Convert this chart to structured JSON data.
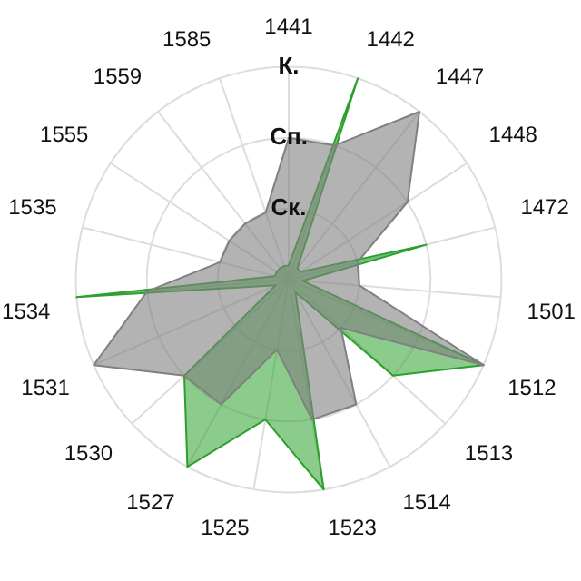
{
  "chart_data": {
    "type": "radar",
    "categories": [
      "1441",
      "1442",
      "1447",
      "1448",
      "1472",
      "1501",
      "1512",
      "1513",
      "1514",
      "1523",
      "1525",
      "1527",
      "1530",
      "1531",
      "1534",
      "1535",
      "1555",
      "1559",
      "1585"
    ],
    "series": [
      {
        "color": "#808080",
        "values": [
          2,
          2,
          3,
          2,
          1,
          1,
          3,
          1,
          2,
          2,
          1,
          2,
          2,
          3,
          2,
          1,
          1,
          1,
          1
        ]
      },
      {
        "color": "#2ca02c",
        "values": [
          0.2,
          3,
          0.2,
          0.2,
          2,
          0.2,
          3,
          2,
          0.2,
          3,
          2,
          3,
          2,
          0.2,
          3,
          0.2,
          0.2,
          0.2,
          0.2
        ]
      }
    ],
    "ylim": [
      0,
      3
    ],
    "yticks": [
      {
        "value": 1,
        "label": "Ск."
      },
      {
        "value": 2,
        "label": "Сп."
      },
      {
        "value": 3,
        "label": "К."
      }
    ],
    "grid": true,
    "legend": false,
    "marker": "none"
  }
}
